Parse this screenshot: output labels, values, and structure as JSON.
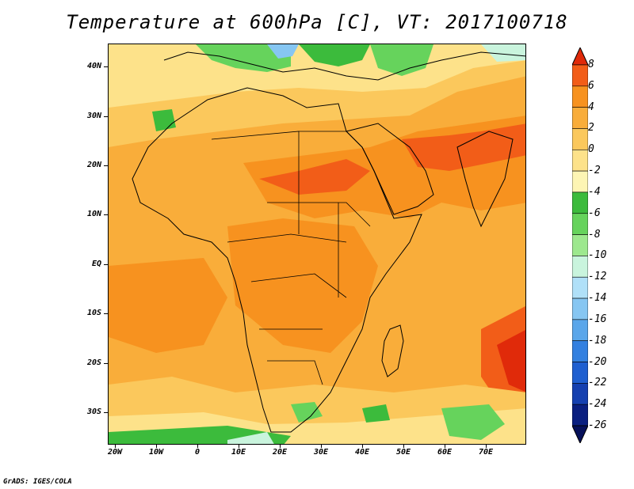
{
  "title": "Temperature at 600hPa [C], VT: 2017100718",
  "credit": "GrADS: IGES/COLA",
  "lat_labels": [
    "40N",
    "30N",
    "20N",
    "10N",
    "EQ",
    "10S",
    "20S",
    "30S"
  ],
  "lon_labels": [
    "20W",
    "10W",
    "0",
    "10E",
    "20E",
    "30E",
    "40E",
    "50E",
    "60E",
    "70E"
  ],
  "colorbar": {
    "labels": [
      "8",
      "6",
      "4",
      "2",
      "0",
      "-2",
      "-4",
      "-6",
      "-8",
      "-10",
      "-12",
      "-14",
      "-16",
      "-18",
      "-20",
      "-22",
      "-24",
      "-26"
    ],
    "colors": [
      "#e02a0a",
      "#f25d18",
      "#f7921f",
      "#f9ad3a",
      "#fbc85c",
      "#fde28a",
      "#fdf5b4",
      "#3cbb3c",
      "#66d35c",
      "#9de88e",
      "#c9f4dd",
      "#b0e0f8",
      "#86c6f2",
      "#5aa6ea",
      "#3380e0",
      "#1f5fd0",
      "#1540b0",
      "#0a1f80",
      "#06105a"
    ]
  },
  "colors": {
    "background_warm": "#f9ad3a",
    "coastline": "#000000"
  }
}
